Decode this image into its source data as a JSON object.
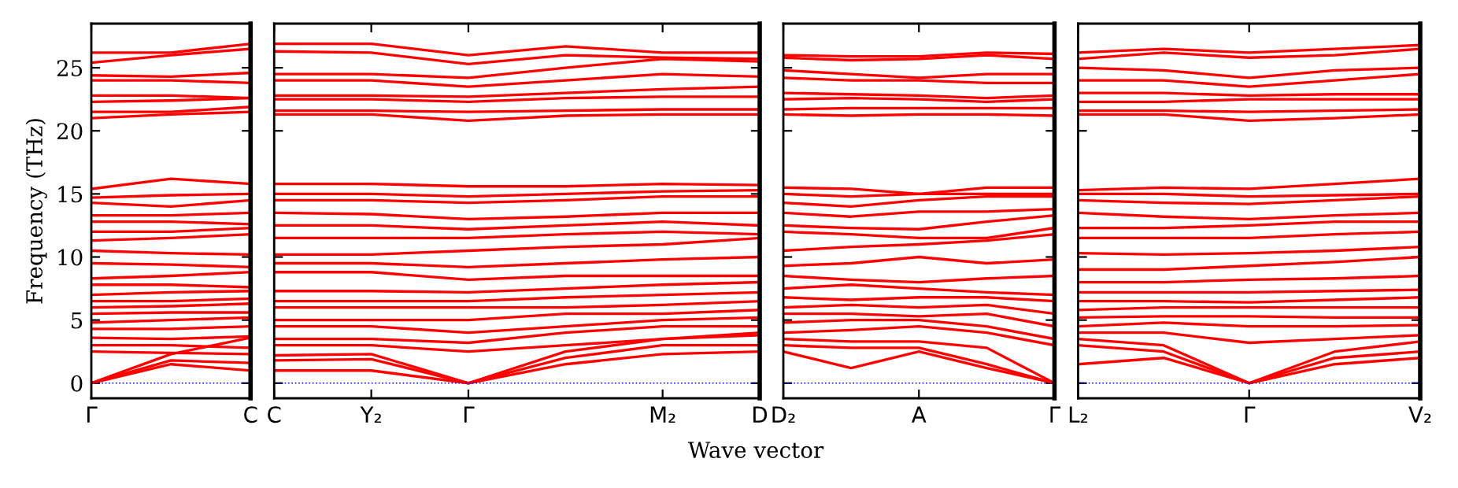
{
  "chart_data": [
    {
      "type": "line",
      "ylabel": "Frequency (THz)",
      "ylim": [
        -1.2,
        28.5
      ],
      "categories": [
        "Γ",
        null,
        "C"
      ],
      "yticks": [
        0,
        5,
        10,
        15,
        20,
        25
      ],
      "line_style": "solid",
      "grid": false,
      "legend": false,
      "ref_lines": [
        {
          "axis": "y",
          "value": 0,
          "color": "#0000ff",
          "line_style": "dotted"
        }
      ],
      "series": [
        {
          "color": "#ff0000",
          "values": [
            0,
            1.5,
            1.0
          ]
        },
        {
          "color": "#ff0000",
          "values": [
            0,
            1.8,
            1.6
          ]
        },
        {
          "color": "#ff0000",
          "values": [
            0,
            2.3,
            3.6
          ]
        },
        {
          "color": "#ff0000",
          "values": [
            2.5,
            2.4,
            2.3
          ]
        },
        {
          "color": "#ff0000",
          "values": [
            3.0,
            3.0,
            2.8
          ]
        },
        {
          "color": "#ff0000",
          "values": [
            3.6,
            3.5,
            3.7
          ]
        },
        {
          "color": "#ff0000",
          "values": [
            4.3,
            4.3,
            4.5
          ]
        },
        {
          "color": "#ff0000",
          "values": [
            4.8,
            5.0,
            5.2
          ]
        },
        {
          "color": "#ff0000",
          "values": [
            5.5,
            5.6,
            5.6
          ]
        },
        {
          "color": "#ff0000",
          "values": [
            6.0,
            6.1,
            6.3
          ]
        },
        {
          "color": "#ff0000",
          "values": [
            6.5,
            6.5,
            6.7
          ]
        },
        {
          "color": "#ff0000",
          "values": [
            7.0,
            7.2,
            7.3
          ]
        },
        {
          "color": "#ff0000",
          "values": [
            7.8,
            7.8,
            7.6
          ]
        },
        {
          "color": "#ff0000",
          "values": [
            8.3,
            8.5,
            8.8
          ]
        },
        {
          "color": "#ff0000",
          "values": [
            9.5,
            9.4,
            9.2
          ]
        },
        {
          "color": "#ff0000",
          "values": [
            10.5,
            10.3,
            10.2
          ]
        },
        {
          "color": "#ff0000",
          "values": [
            11.3,
            11.5,
            11.8
          ]
        },
        {
          "color": "#ff0000",
          "values": [
            12.0,
            12.0,
            12.3
          ]
        },
        {
          "color": "#ff0000",
          "values": [
            12.8,
            12.8,
            12.6
          ]
        },
        {
          "color": "#ff0000",
          "values": [
            13.3,
            13.3,
            13.5
          ]
        },
        {
          "color": "#ff0000",
          "values": [
            14.3,
            14.0,
            14.5
          ]
        },
        {
          "color": "#ff0000",
          "values": [
            14.7,
            14.9,
            15.0
          ]
        },
        {
          "color": "#ff0000",
          "values": [
            15.4,
            16.2,
            15.8
          ]
        },
        {
          "color": "#ff0000",
          "values": [
            21.0,
            21.3,
            21.5
          ]
        },
        {
          "color": "#ff0000",
          "values": [
            21.5,
            21.5,
            21.9
          ]
        },
        {
          "color": "#ff0000",
          "values": [
            22.3,
            22.4,
            22.6
          ]
        },
        {
          "color": "#ff0000",
          "values": [
            22.8,
            22.8,
            22.6
          ]
        },
        {
          "color": "#ff0000",
          "values": [
            24.0,
            24.0,
            23.8
          ]
        },
        {
          "color": "#ff0000",
          "values": [
            24.4,
            24.3,
            24.6
          ]
        },
        {
          "color": "#ff0000",
          "values": [
            25.4,
            26.0,
            26.5
          ]
        },
        {
          "color": "#ff0000",
          "values": [
            26.2,
            26.2,
            26.9
          ]
        }
      ]
    },
    {
      "type": "line",
      "xlabel": "Wave vector",
      "tick_labels": "x",
      "ylim": [
        -1.2,
        28.5
      ],
      "categories": [
        "C",
        "Y₂",
        "Γ",
        null,
        "M₂",
        "D"
      ],
      "yticks": [
        0,
        5,
        10,
        15,
        20,
        25
      ],
      "line_style": "solid",
      "grid": false,
      "legend": false,
      "ref_lines": [
        {
          "axis": "y",
          "value": 0,
          "color": "#0000ff",
          "line_style": "dotted"
        }
      ],
      "series": [
        {
          "color": "#ff0000",
          "values": [
            1.0,
            1.0,
            0,
            1.5,
            2.3,
            2.5
          ]
        },
        {
          "color": "#ff0000",
          "values": [
            1.8,
            1.9,
            0,
            2.0,
            3.0,
            3.0
          ]
        },
        {
          "color": "#ff0000",
          "values": [
            2.2,
            2.3,
            0,
            2.5,
            3.5,
            3.8
          ]
        },
        {
          "color": "#ff0000",
          "values": [
            3.0,
            3.0,
            2.5,
            3.0,
            3.5,
            4.0
          ]
        },
        {
          "color": "#ff0000",
          "values": [
            3.5,
            3.5,
            3.2,
            4.0,
            4.5,
            4.5
          ]
        },
        {
          "color": "#ff0000",
          "values": [
            4.5,
            4.5,
            4.0,
            4.5,
            5.0,
            5.2
          ]
        },
        {
          "color": "#ff0000",
          "values": [
            5.0,
            5.0,
            5.0,
            5.5,
            5.5,
            5.8
          ]
        },
        {
          "color": "#ff0000",
          "values": [
            6.0,
            6.0,
            6.0,
            6.0,
            6.2,
            6.5
          ]
        },
        {
          "color": "#ff0000",
          "values": [
            6.5,
            6.5,
            6.5,
            6.8,
            7.0,
            7.2
          ]
        },
        {
          "color": "#ff0000",
          "values": [
            7.3,
            7.3,
            7.2,
            7.5,
            7.8,
            8.0
          ]
        },
        {
          "color": "#ff0000",
          "values": [
            8.8,
            8.8,
            8.2,
            8.5,
            8.5,
            8.5
          ]
        },
        {
          "color": "#ff0000",
          "values": [
            9.5,
            9.5,
            9.2,
            9.5,
            9.8,
            10.0
          ]
        },
        {
          "color": "#ff0000",
          "values": [
            10.2,
            10.2,
            10.5,
            10.8,
            11.0,
            11.5
          ]
        },
        {
          "color": "#ff0000",
          "values": [
            11.5,
            11.5,
            11.5,
            11.8,
            12.0,
            11.8
          ]
        },
        {
          "color": "#ff0000",
          "values": [
            12.5,
            12.5,
            12.2,
            12.5,
            12.8,
            12.5
          ]
        },
        {
          "color": "#ff0000",
          "values": [
            13.5,
            13.4,
            13.0,
            13.2,
            13.5,
            13.5
          ]
        },
        {
          "color": "#ff0000",
          "values": [
            14.5,
            14.5,
            14.3,
            14.5,
            14.8,
            14.8
          ]
        },
        {
          "color": "#ff0000",
          "values": [
            15.0,
            15.0,
            14.8,
            15.0,
            15.2,
            15.3
          ]
        },
        {
          "color": "#ff0000",
          "values": [
            15.8,
            15.8,
            15.6,
            15.6,
            15.8,
            15.7
          ]
        },
        {
          "color": "#ff0000",
          "values": [
            21.3,
            21.3,
            20.8,
            21.2,
            21.3,
            21.3
          ]
        },
        {
          "color": "#ff0000",
          "values": [
            21.6,
            21.6,
            21.5,
            21.6,
            21.7,
            21.7
          ]
        },
        {
          "color": "#ff0000",
          "values": [
            22.5,
            22.5,
            22.3,
            22.6,
            22.7,
            22.7
          ]
        },
        {
          "color": "#ff0000",
          "values": [
            22.8,
            22.8,
            22.7,
            23.0,
            23.3,
            23.5
          ]
        },
        {
          "color": "#ff0000",
          "values": [
            24.0,
            24.0,
            23.5,
            24.0,
            24.5,
            24.3
          ]
        },
        {
          "color": "#ff0000",
          "values": [
            24.5,
            24.5,
            24.2,
            25.0,
            25.7,
            25.5
          ]
        },
        {
          "color": "#ff0000",
          "values": [
            26.3,
            26.2,
            25.3,
            26.0,
            25.8,
            25.7
          ]
        },
        {
          "color": "#ff0000",
          "values": [
            26.9,
            26.9,
            26.0,
            26.7,
            26.2,
            26.2
          ]
        }
      ]
    },
    {
      "type": "line",
      "tick_labels": "x",
      "ylim": [
        -1.2,
        28.5
      ],
      "categories": [
        "D₂",
        null,
        "A",
        null,
        "Γ"
      ],
      "yticks": [
        0,
        5,
        10,
        15,
        20,
        25
      ],
      "line_style": "solid",
      "grid": false,
      "legend": false,
      "ref_lines": [
        {
          "axis": "y",
          "value": 0,
          "color": "#0000ff",
          "line_style": "dotted"
        }
      ],
      "series": [
        {
          "color": "#ff0000",
          "values": [
            2.5,
            1.2,
            2.5,
            1.2,
            0
          ]
        },
        {
          "color": "#ff0000",
          "values": [
            3.0,
            2.8,
            2.8,
            1.5,
            0
          ]
        },
        {
          "color": "#ff0000",
          "values": [
            3.5,
            3.3,
            3.3,
            2.8,
            0
          ]
        },
        {
          "color": "#ff0000",
          "values": [
            4.0,
            4.2,
            4.5,
            4.0,
            3.0
          ]
        },
        {
          "color": "#ff0000",
          "values": [
            4.8,
            5.0,
            5.0,
            4.5,
            3.5
          ]
        },
        {
          "color": "#ff0000",
          "values": [
            5.5,
            5.5,
            5.3,
            5.5,
            4.5
          ]
        },
        {
          "color": "#ff0000",
          "values": [
            6.0,
            6.2,
            6.0,
            6.2,
            5.5
          ]
        },
        {
          "color": "#ff0000",
          "values": [
            6.8,
            6.6,
            6.8,
            6.8,
            6.5
          ]
        },
        {
          "color": "#ff0000",
          "values": [
            7.5,
            7.8,
            7.5,
            7.2,
            7.0
          ]
        },
        {
          "color": "#ff0000",
          "values": [
            8.5,
            8.2,
            8.0,
            8.3,
            8.5
          ]
        },
        {
          "color": "#ff0000",
          "values": [
            9.3,
            9.5,
            10.0,
            9.5,
            9.8
          ]
        },
        {
          "color": "#ff0000",
          "values": [
            10.5,
            10.8,
            11.0,
            11.3,
            11.8
          ]
        },
        {
          "color": "#ff0000",
          "values": [
            12.0,
            11.8,
            11.5,
            11.5,
            12.3
          ]
        },
        {
          "color": "#ff0000",
          "values": [
            12.5,
            12.3,
            12.2,
            12.8,
            13.3
          ]
        },
        {
          "color": "#ff0000",
          "values": [
            13.5,
            13.2,
            13.6,
            13.6,
            13.8
          ]
        },
        {
          "color": "#ff0000",
          "values": [
            14.3,
            14.0,
            14.5,
            14.8,
            14.8
          ]
        },
        {
          "color": "#ff0000",
          "values": [
            15.0,
            14.8,
            15.0,
            15.0,
            15.0
          ]
        },
        {
          "color": "#ff0000",
          "values": [
            15.5,
            15.4,
            15.0,
            15.5,
            15.5
          ]
        },
        {
          "color": "#ff0000",
          "values": [
            21.3,
            21.2,
            21.3,
            21.3,
            21.2
          ]
        },
        {
          "color": "#ff0000",
          "values": [
            21.7,
            21.8,
            21.8,
            21.8,
            21.8
          ]
        },
        {
          "color": "#ff0000",
          "values": [
            22.5,
            22.6,
            22.5,
            22.3,
            22.5
          ]
        },
        {
          "color": "#ff0000",
          "values": [
            23.0,
            22.9,
            22.8,
            22.6,
            22.8
          ]
        },
        {
          "color": "#ff0000",
          "values": [
            24.2,
            24.0,
            24.0,
            23.8,
            23.8
          ]
        },
        {
          "color": "#ff0000",
          "values": [
            24.8,
            24.5,
            24.2,
            24.5,
            24.5
          ]
        },
        {
          "color": "#ff0000",
          "values": [
            25.8,
            25.6,
            25.7,
            26.0,
            25.7
          ]
        },
        {
          "color": "#ff0000",
          "values": [
            26.0,
            25.9,
            25.9,
            26.2,
            26.1
          ]
        }
      ]
    },
    {
      "type": "line",
      "tick_labels": "x",
      "ylim": [
        -1.2,
        28.5
      ],
      "categories": [
        "L₂",
        null,
        "Γ",
        null,
        "V₂"
      ],
      "yticks": [
        0,
        5,
        10,
        15,
        20,
        25
      ],
      "line_style": "solid",
      "grid": false,
      "legend": false,
      "ref_lines": [
        {
          "axis": "y",
          "value": 0,
          "color": "#0000ff",
          "line_style": "dotted"
        }
      ],
      "series": [
        {
          "color": "#ff0000",
          "values": [
            1.5,
            2.0,
            0,
            1.5,
            2.0
          ]
        },
        {
          "color": "#ff0000",
          "values": [
            3.0,
            2.5,
            0,
            2.0,
            2.5
          ]
        },
        {
          "color": "#ff0000",
          "values": [
            3.5,
            3.0,
            0,
            2.5,
            3.3
          ]
        },
        {
          "color": "#ff0000",
          "values": [
            4.0,
            4.0,
            3.2,
            3.5,
            3.8
          ]
        },
        {
          "color": "#ff0000",
          "values": [
            4.5,
            4.8,
            4.5,
            4.5,
            4.6
          ]
        },
        {
          "color": "#ff0000",
          "values": [
            5.2,
            5.3,
            5.3,
            5.2,
            5.2
          ]
        },
        {
          "color": "#ff0000",
          "values": [
            5.8,
            6.0,
            6.0,
            6.0,
            6.0
          ]
        },
        {
          "color": "#ff0000",
          "values": [
            6.5,
            6.5,
            6.4,
            6.6,
            6.8
          ]
        },
        {
          "color": "#ff0000",
          "values": [
            7.2,
            7.2,
            7.2,
            7.3,
            7.4
          ]
        },
        {
          "color": "#ff0000",
          "values": [
            8.0,
            8.0,
            8.2,
            8.3,
            8.5
          ]
        },
        {
          "color": "#ff0000",
          "values": [
            9.0,
            9.0,
            9.3,
            9.6,
            10.0
          ]
        },
        {
          "color": "#ff0000",
          "values": [
            10.3,
            10.2,
            10.3,
            10.5,
            10.8
          ]
        },
        {
          "color": "#ff0000",
          "values": [
            11.5,
            11.5,
            11.5,
            11.8,
            12.0
          ]
        },
        {
          "color": "#ff0000",
          "values": [
            12.3,
            12.3,
            12.5,
            12.8,
            12.8
          ]
        },
        {
          "color": "#ff0000",
          "values": [
            13.5,
            13.2,
            13.0,
            13.3,
            13.5
          ]
        },
        {
          "color": "#ff0000",
          "values": [
            14.5,
            14.3,
            14.2,
            14.5,
            14.8
          ]
        },
        {
          "color": "#ff0000",
          "values": [
            15.0,
            15.0,
            14.8,
            14.9,
            15.0
          ]
        },
        {
          "color": "#ff0000",
          "values": [
            15.3,
            15.5,
            15.4,
            15.8,
            16.2
          ]
        },
        {
          "color": "#ff0000",
          "values": [
            21.3,
            21.3,
            20.8,
            21.0,
            21.3
          ]
        },
        {
          "color": "#ff0000",
          "values": [
            21.6,
            21.6,
            21.5,
            21.6,
            21.7
          ]
        },
        {
          "color": "#ff0000",
          "values": [
            22.3,
            22.3,
            22.5,
            22.5,
            22.5
          ]
        },
        {
          "color": "#ff0000",
          "values": [
            23.0,
            23.0,
            22.8,
            22.9,
            22.9
          ]
        },
        {
          "color": "#ff0000",
          "values": [
            24.0,
            24.0,
            23.5,
            24.0,
            24.5
          ]
        },
        {
          "color": "#ff0000",
          "values": [
            25.0,
            24.8,
            24.2,
            24.8,
            25.0
          ]
        },
        {
          "color": "#ff0000",
          "values": [
            25.7,
            26.2,
            25.8,
            26.0,
            26.5
          ]
        },
        {
          "color": "#ff0000",
          "values": [
            26.2,
            26.5,
            26.2,
            26.5,
            26.8
          ]
        }
      ]
    }
  ]
}
